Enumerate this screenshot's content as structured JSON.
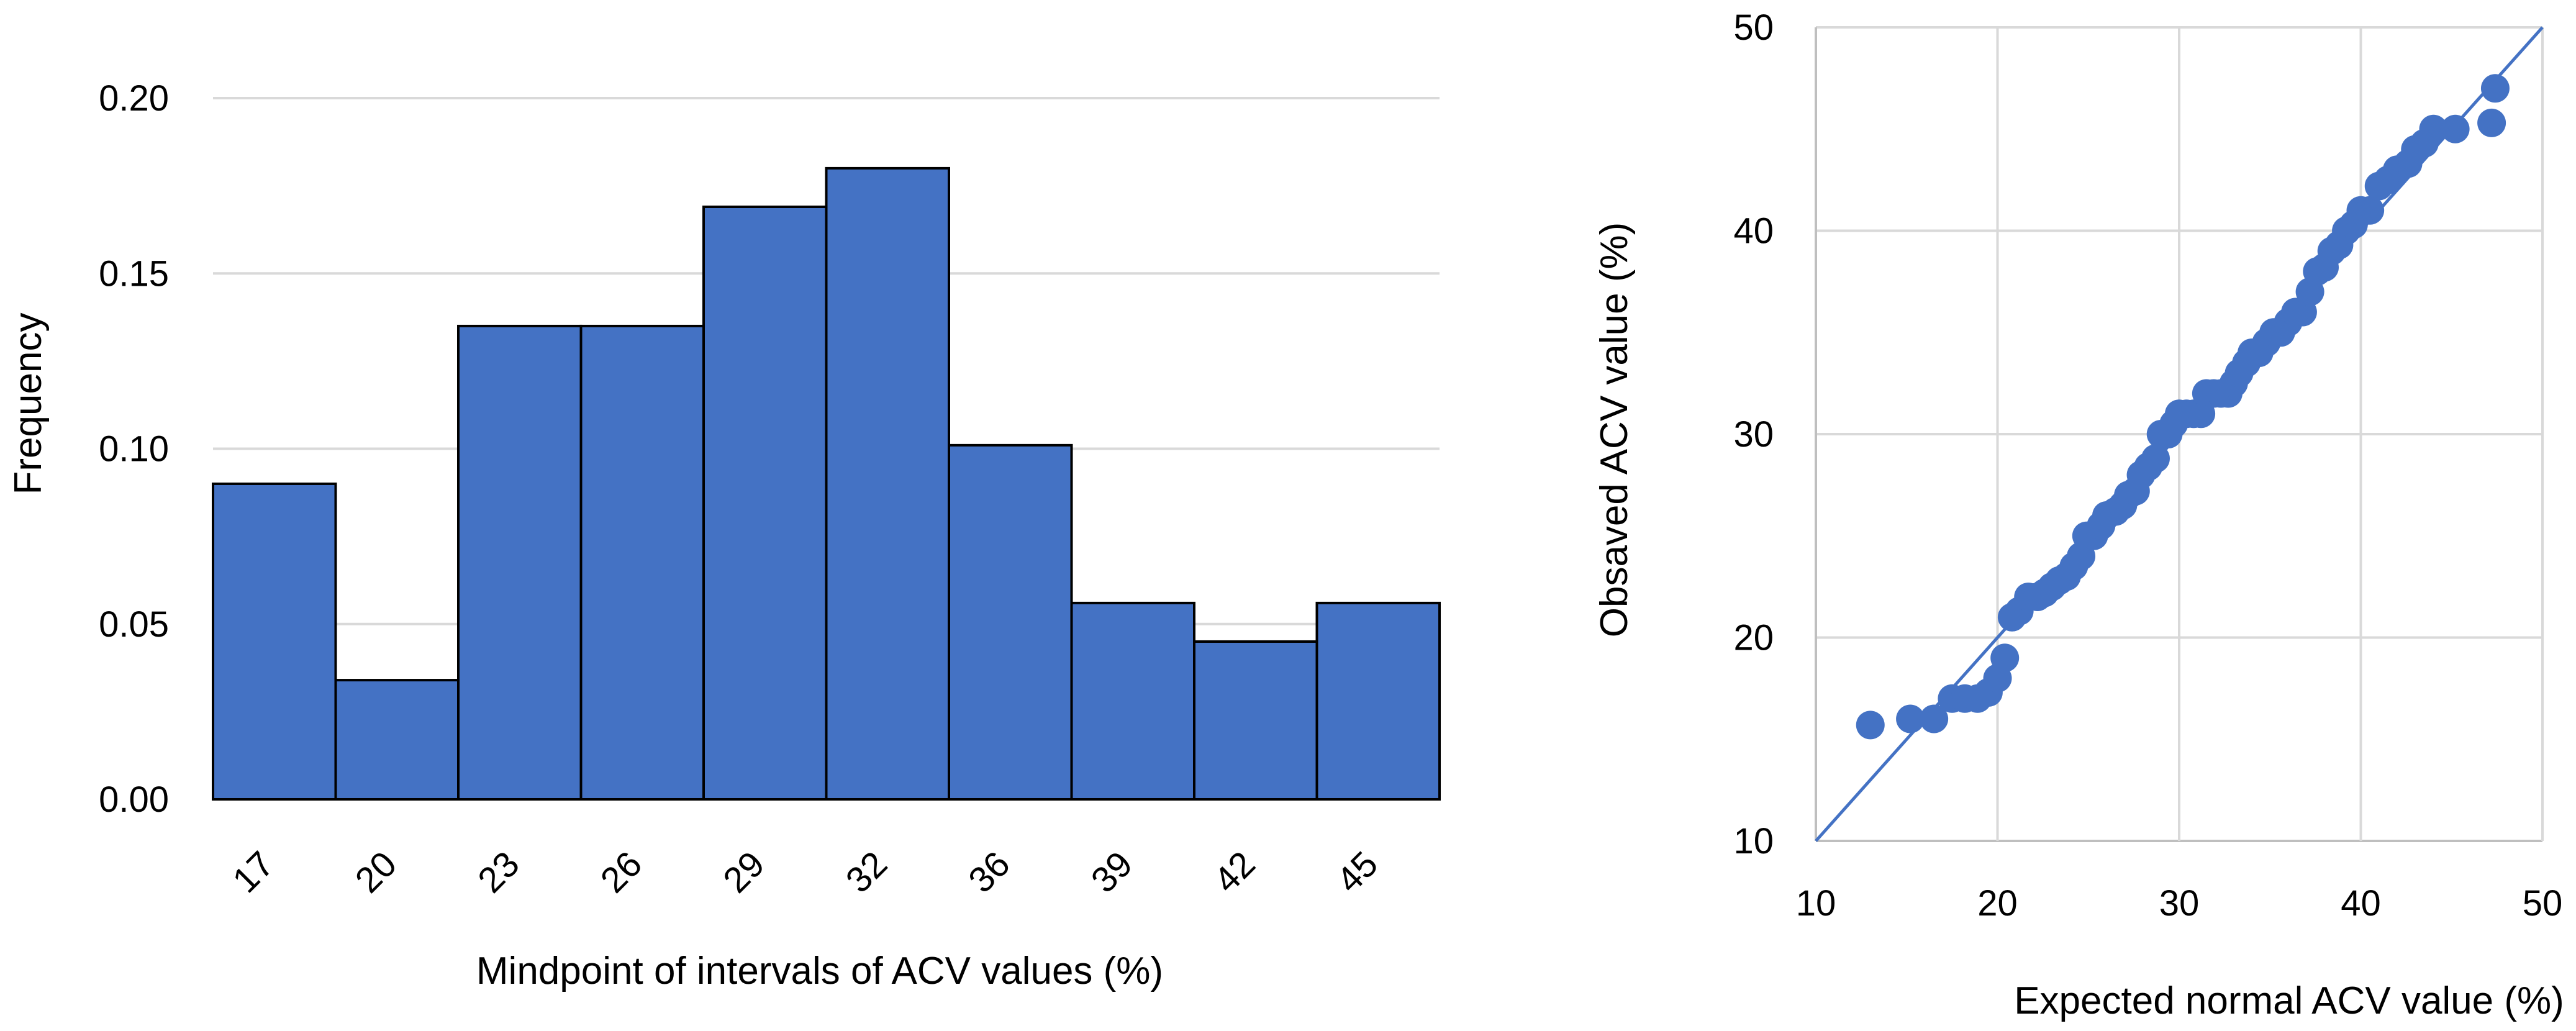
{
  "chart_data": [
    {
      "type": "bar",
      "title": "",
      "xlabel": "Mindpoint of intervals of ACV values (%)",
      "ylabel": "Frequency",
      "categories": [
        "17",
        "20",
        "23",
        "26",
        "29",
        "32",
        "36",
        "39",
        "42",
        "45"
      ],
      "values": [
        0.09,
        0.034,
        0.135,
        0.135,
        0.169,
        0.18,
        0.101,
        0.056,
        0.045,
        0.056
      ],
      "ylim": [
        0,
        0.2
      ],
      "yticks": [
        "0.00",
        "0.05",
        "0.10",
        "0.15",
        "0.20"
      ],
      "grid": true,
      "legend": "none",
      "colors": {
        "bar": "#4472C4",
        "edge": "#000000",
        "grid": "#D9D9D9"
      }
    },
    {
      "type": "scatter",
      "title": "",
      "xlabel": "Expected normal ACV value (%)",
      "ylabel": "Obsaved ACV value (%)",
      "xlim": [
        10,
        50
      ],
      "ylim": [
        10,
        50
      ],
      "xticks": [
        "10",
        "20",
        "30",
        "40",
        "50"
      ],
      "yticks": [
        "10",
        "20",
        "30",
        "40",
        "50"
      ],
      "grid": true,
      "legend": "none",
      "reference_line": {
        "x": [
          10,
          50
        ],
        "y": [
          10,
          50
        ]
      },
      "points": [
        [
          13.0,
          15.7
        ],
        [
          15.2,
          16.0
        ],
        [
          16.5,
          16.0
        ],
        [
          17.5,
          17.0
        ],
        [
          18.2,
          17.0
        ],
        [
          18.9,
          17.0
        ],
        [
          19.5,
          17.3
        ],
        [
          20.0,
          18.0
        ],
        [
          20.4,
          19.0
        ],
        [
          20.8,
          21.0
        ],
        [
          21.2,
          21.3
        ],
        [
          21.7,
          22.0
        ],
        [
          22.2,
          22.0
        ],
        [
          22.6,
          22.2
        ],
        [
          23.0,
          22.5
        ],
        [
          23.4,
          22.8
        ],
        [
          23.8,
          23.0
        ],
        [
          24.2,
          23.5
        ],
        [
          24.6,
          24.0
        ],
        [
          24.9,
          25.0
        ],
        [
          25.3,
          25.0
        ],
        [
          25.7,
          25.5
        ],
        [
          26.0,
          26.0
        ],
        [
          26.5,
          26.2
        ],
        [
          26.9,
          26.5
        ],
        [
          27.2,
          27.0
        ],
        [
          27.6,
          27.2
        ],
        [
          27.9,
          28.0
        ],
        [
          28.3,
          28.4
        ],
        [
          28.7,
          28.8
        ],
        [
          29.0,
          30.0
        ],
        [
          29.4,
          30.0
        ],
        [
          29.7,
          30.5
        ],
        [
          30.0,
          31.0
        ],
        [
          30.4,
          31.0
        ],
        [
          30.8,
          31.0
        ],
        [
          31.2,
          31.0
        ],
        [
          31.5,
          32.0
        ],
        [
          31.9,
          32.0
        ],
        [
          32.3,
          32.0
        ],
        [
          32.7,
          32.0
        ],
        [
          33.0,
          32.5
        ],
        [
          33.3,
          33.0
        ],
        [
          33.7,
          33.5
        ],
        [
          34.0,
          34.0
        ],
        [
          34.4,
          34.0
        ],
        [
          34.8,
          34.5
        ],
        [
          35.2,
          35.0
        ],
        [
          35.6,
          35.0
        ],
        [
          36.0,
          35.5
        ],
        [
          36.4,
          36.0
        ],
        [
          36.8,
          36.0
        ],
        [
          37.2,
          37.0
        ],
        [
          37.6,
          38.0
        ],
        [
          38.0,
          38.2
        ],
        [
          38.4,
          39.0
        ],
        [
          38.8,
          39.3
        ],
        [
          39.2,
          40.0
        ],
        [
          39.6,
          40.3
        ],
        [
          40.0,
          41.0
        ],
        [
          40.5,
          41.0
        ],
        [
          41.0,
          42.2
        ],
        [
          41.5,
          42.5
        ],
        [
          42.0,
          43.0
        ],
        [
          42.6,
          43.3
        ],
        [
          43.0,
          44.0
        ],
        [
          43.5,
          44.3
        ],
        [
          44.0,
          45.0
        ],
        [
          45.2,
          45.0
        ],
        [
          47.2,
          45.3
        ],
        [
          47.4,
          47.0
        ]
      ],
      "colors": {
        "marker": "#4472C4",
        "line": "#4472C4",
        "grid": "#D9D9D9",
        "axis": "#BFBFBF"
      }
    }
  ]
}
